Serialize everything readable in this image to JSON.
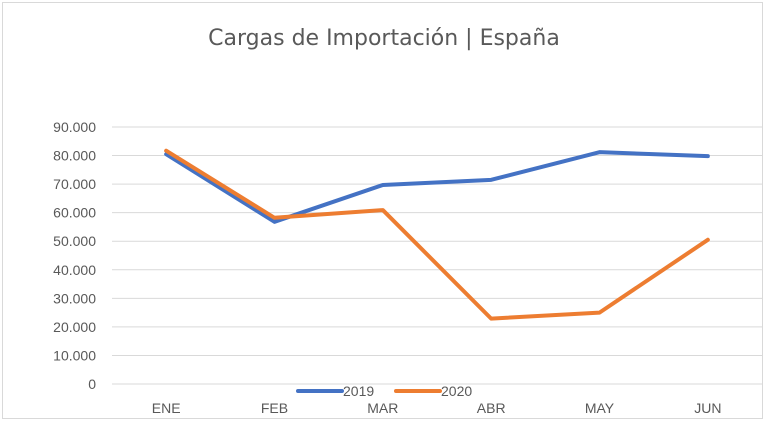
{
  "chart_data": {
    "type": "line",
    "title": "Cargas de Importación | España",
    "categories": [
      "ENE",
      "FEB",
      "MAR",
      "ABR",
      "MAY",
      "JUN"
    ],
    "series": [
      {
        "name": "2019",
        "color": "#4472c4",
        "values": [
          80500,
          56800,
          69700,
          71500,
          81200,
          79800
        ]
      },
      {
        "name": "2020",
        "color": "#ed7d31",
        "values": [
          81700,
          58200,
          60900,
          22900,
          25000,
          50500
        ]
      }
    ],
    "ylim": [
      0,
      90000
    ],
    "yticks": [
      0,
      10000,
      20000,
      30000,
      40000,
      50000,
      60000,
      70000,
      80000,
      90000
    ],
    "ytick_labels": [
      "0",
      "10.000",
      "20.000",
      "30.000",
      "40.000",
      "50.000",
      "60.000",
      "70.000",
      "80.000",
      "90.000"
    ],
    "grid": true,
    "legend_position": "bottom"
  }
}
